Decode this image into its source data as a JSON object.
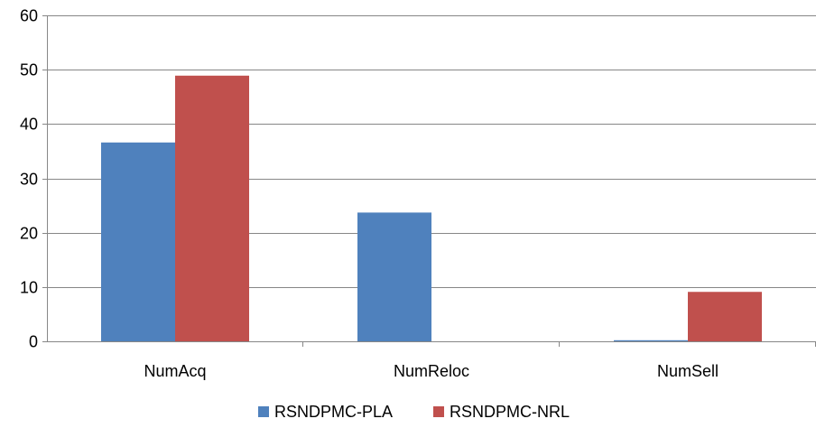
{
  "chart_data": {
    "type": "bar",
    "title": "",
    "xlabel": "",
    "ylabel": "",
    "categories": [
      "NumAcq",
      "NumReloc",
      "NumSell"
    ],
    "series": [
      {
        "name": "RSNDPMC-PLA",
        "color": "#4f81bd",
        "values": [
          36.6,
          23.7,
          0.2
        ]
      },
      {
        "name": "RSNDPMC-NRL",
        "color": "#c0504d",
        "values": [
          48.9,
          0,
          9.1
        ]
      }
    ],
    "ylim": [
      0,
      60
    ],
    "yticks": [
      0,
      10,
      20,
      30,
      40,
      50,
      60
    ],
    "grid": true,
    "legend": "bottom"
  }
}
